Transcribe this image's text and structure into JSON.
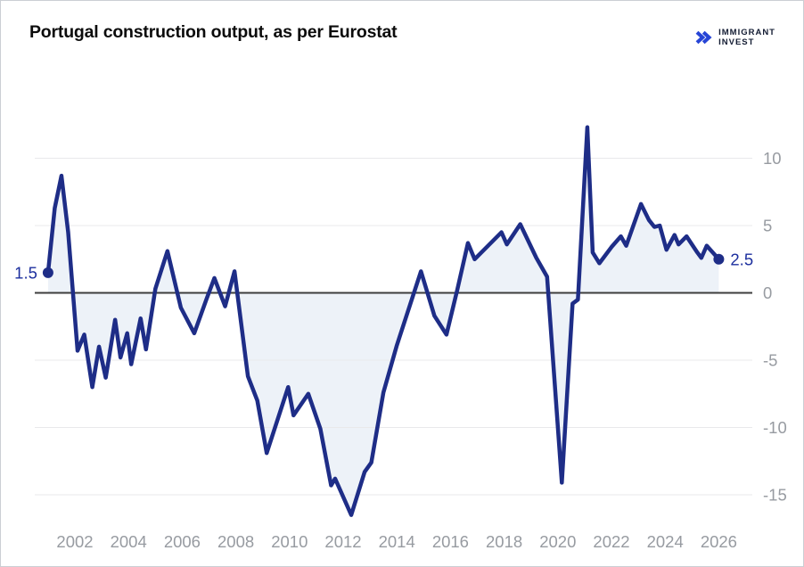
{
  "header": {
    "title": "Portugal construction output, as per Eurostat",
    "logo": {
      "line1": "IMMIGRANT",
      "line2": "INVEST"
    }
  },
  "colors": {
    "line": "#1e2d87",
    "area": "#edf2f8",
    "grid": "#e9e9eb",
    "zero_line": "#3d3d3d",
    "axis_text": "#979ba1",
    "value_label": "#1c2f9e",
    "logo_icon": "#2745d6",
    "logo_text": "#131c33",
    "background": "#ffffff"
  },
  "chart_data": {
    "type": "line",
    "title": "Portugal construction output, as per Eurostat",
    "x": [
      2001.0,
      2001.25,
      2001.5,
      2001.75,
      2002.1,
      2002.35,
      2002.65,
      2002.9,
      2003.15,
      2003.5,
      2003.7,
      2003.95,
      2004.1,
      2004.45,
      2004.65,
      2005.0,
      2005.45,
      2005.95,
      2006.45,
      2006.9,
      2007.2,
      2007.6,
      2007.95,
      2008.45,
      2008.8,
      2009.15,
      2009.95,
      2010.15,
      2010.7,
      2011.15,
      2011.55,
      2011.7,
      2012.3,
      2012.8,
      2013.05,
      2013.5,
      2014.0,
      2014.9,
      2015.4,
      2015.85,
      2016.25,
      2016.65,
      2016.9,
      2017.3,
      2017.9,
      2018.1,
      2018.6,
      2019.2,
      2019.6,
      2020.15,
      2020.55,
      2020.75,
      2021.1,
      2021.3,
      2021.55,
      2022.0,
      2022.35,
      2022.55,
      2023.1,
      2023.4,
      2023.6,
      2023.8,
      2024.05,
      2024.35,
      2024.5,
      2024.8,
      2025.2,
      2025.35,
      2025.55,
      2026.0
    ],
    "values": [
      1.5,
      6.3,
      8.7,
      4.5,
      -4.3,
      -3.1,
      -7.0,
      -4.0,
      -6.3,
      -2.0,
      -4.8,
      -3.0,
      -5.3,
      -1.9,
      -4.2,
      0.3,
      3.1,
      -1.1,
      -3.0,
      -0.5,
      1.1,
      -1.0,
      1.6,
      -6.2,
      -8.0,
      -11.9,
      -7.0,
      -9.1,
      -7.5,
      -10.1,
      -14.3,
      -13.8,
      -16.5,
      -13.3,
      -12.6,
      -7.4,
      -3.9,
      1.6,
      -1.7,
      -3.1,
      0.2,
      3.7,
      2.5,
      3.3,
      4.5,
      3.6,
      5.1,
      2.6,
      1.2,
      -14.1,
      -0.8,
      -0.5,
      12.3,
      3.0,
      2.2,
      3.4,
      4.2,
      3.5,
      6.6,
      5.4,
      4.9,
      5.0,
      3.2,
      4.3,
      3.6,
      4.2,
      3.0,
      2.6,
      3.5,
      2.5
    ],
    "x_ticks": [
      2002,
      2004,
      2006,
      2008,
      2010,
      2012,
      2014,
      2016,
      2018,
      2020,
      2022,
      2024,
      2026
    ],
    "y_ticks": [
      10,
      5,
      0,
      -5,
      -10,
      -15
    ],
    "xlim": [
      2000.5,
      2027.25
    ],
    "ylim": [
      -17.5,
      13.5
    ],
    "grid": "horizontal",
    "legend": "none",
    "area_fill_to_zero": true,
    "start_label": "1.5",
    "end_label": "2.5",
    "xlabel": "",
    "ylabel": ""
  }
}
